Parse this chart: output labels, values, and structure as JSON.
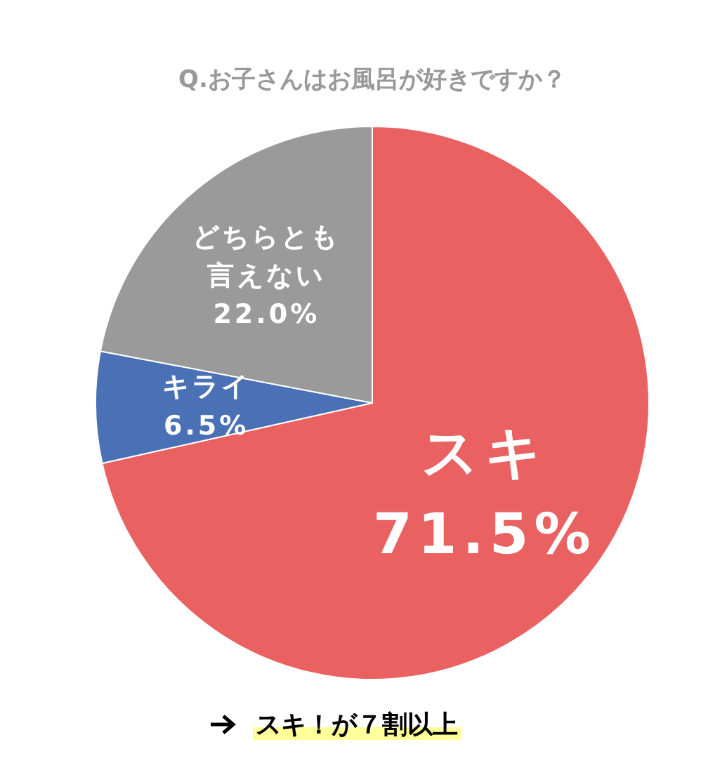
{
  "chart_data": {
    "type": "pie",
    "title": "Q.お子さんはお風呂が好きですか？",
    "categories": [
      "スキ",
      "キライ",
      "どちらとも言えない"
    ],
    "values": [
      71.5,
      6.5,
      22.0
    ],
    "value_labels": [
      "71.5%",
      "6.5%",
      "22.0%"
    ],
    "colors": [
      "#e96161",
      "#4a70b6",
      "#9a9a9a"
    ],
    "annotations": [
      "スキ！が７割以上"
    ]
  }
}
